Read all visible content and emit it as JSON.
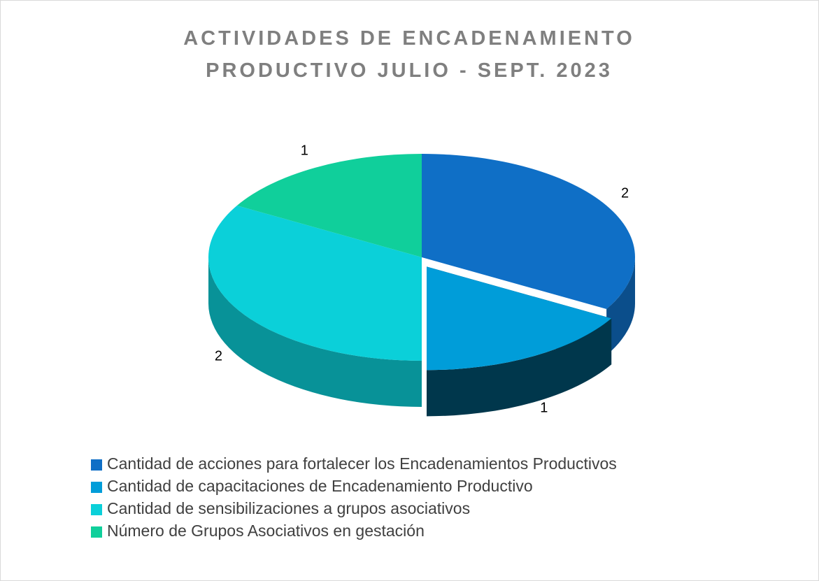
{
  "chart_data": {
    "type": "pie3d",
    "title": [
      "ACTIVIDADES DE ENCADENAMIENTO",
      "PRODUCTIVO JULIO - SEPT. 2023"
    ],
    "categories": [
      "Cantidad de acciones para fortalecer los Encadenamientos Productivos",
      "Cantidad de capacitaciones de Encadenamiento Productivo",
      "Cantidad de sensibilizaciones a grupos asociativos",
      "Número de Grupos Asociativos en gestación"
    ],
    "values": [
      2,
      1,
      2,
      1
    ],
    "colors": [
      "#0f6fc6",
      "#009dd9",
      "#0bd0d9",
      "#10cf9b"
    ],
    "exploded": [
      1
    ],
    "legend": "bottom"
  }
}
